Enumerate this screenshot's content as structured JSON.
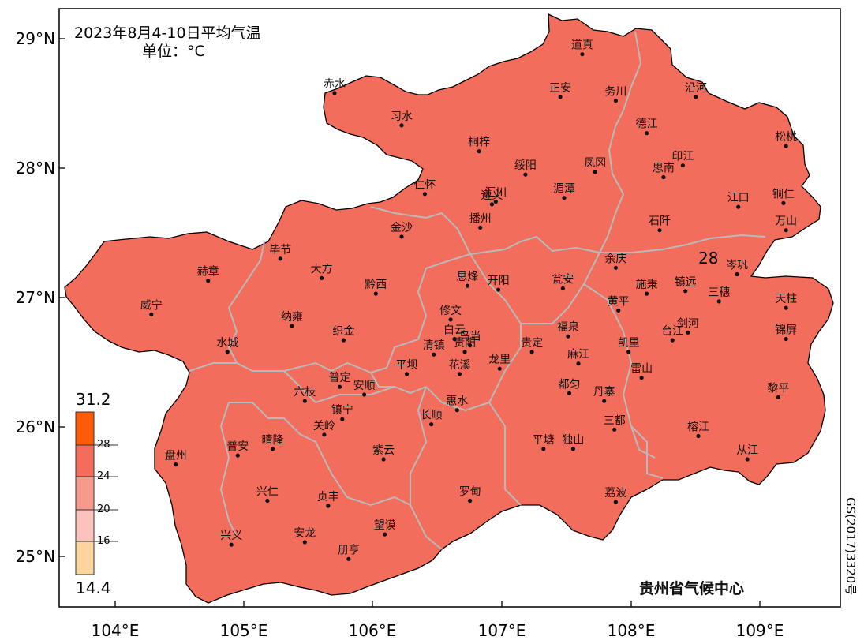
{
  "title": "2023年8月4-10日平均气温",
  "unit": "单位：°C",
  "credit": "贵州省气候中心",
  "map_number": "GS(2017)3320号",
  "contour_label": "28",
  "lat_labels": [
    "29°N",
    "28°N",
    "27°N",
    "26°N",
    "25°N"
  ],
  "lon_labels": [
    "104°E",
    "105°E",
    "106°E",
    "107°E",
    "108°E",
    "109°E"
  ],
  "legend": {
    "max": "31.2",
    "min": "14.4",
    "ticks": [
      "28",
      "24",
      "20",
      "16"
    ],
    "colors": [
      "#ff5a0a",
      "#f36d5c",
      "#f59a8c",
      "#fbc3bb",
      "#fdd49b"
    ]
  },
  "cities": [
    {
      "name": "道真",
      "lon": 107.62,
      "lat": 28.88
    },
    {
      "name": "赤水",
      "lon": 105.7,
      "lat": 28.58
    },
    {
      "name": "正安",
      "lon": 107.45,
      "lat": 28.55
    },
    {
      "name": "务川",
      "lon": 107.88,
      "lat": 28.52
    },
    {
      "name": "沿河",
      "lon": 108.5,
      "lat": 28.55
    },
    {
      "name": "习水",
      "lon": 106.22,
      "lat": 28.33
    },
    {
      "name": "德江",
      "lon": 108.12,
      "lat": 28.27
    },
    {
      "name": "桐梓",
      "lon": 106.82,
      "lat": 28.13
    },
    {
      "name": "松桃",
      "lon": 109.2,
      "lat": 28.17
    },
    {
      "name": "印江",
      "lon": 108.4,
      "lat": 28.02
    },
    {
      "name": "凤冈",
      "lon": 107.72,
      "lat": 27.97
    },
    {
      "name": "思南",
      "lon": 108.25,
      "lat": 27.93
    },
    {
      "name": "绥阳",
      "lon": 107.18,
      "lat": 27.95
    },
    {
      "name": "仁怀",
      "lon": 106.4,
      "lat": 27.8
    },
    {
      "name": "遵义",
      "lon": 106.92,
      "lat": 27.72
    },
    {
      "name": "汇川",
      "lon": 106.95,
      "lat": 27.74
    },
    {
      "name": "湄潭",
      "lon": 107.48,
      "lat": 27.77
    },
    {
      "name": "江口",
      "lon": 108.83,
      "lat": 27.7
    },
    {
      "name": "铜仁",
      "lon": 109.18,
      "lat": 27.73
    },
    {
      "name": "石阡",
      "lon": 108.22,
      "lat": 27.52
    },
    {
      "name": "播州",
      "lon": 106.83,
      "lat": 27.54
    },
    {
      "name": "万山",
      "lon": 109.2,
      "lat": 27.52
    },
    {
      "name": "金沙",
      "lon": 106.22,
      "lat": 27.47
    },
    {
      "name": "毕节",
      "lon": 105.28,
      "lat": 27.3
    },
    {
      "name": "余庆",
      "lon": 107.88,
      "lat": 27.23
    },
    {
      "name": "岑巩",
      "lon": 108.82,
      "lat": 27.18
    },
    {
      "name": "大方",
      "lon": 105.6,
      "lat": 27.15
    },
    {
      "name": "赫章",
      "lon": 104.72,
      "lat": 27.13
    },
    {
      "name": "息烽",
      "lon": 106.73,
      "lat": 27.09
    },
    {
      "name": "开阳",
      "lon": 106.97,
      "lat": 27.06
    },
    {
      "name": "瓮安",
      "lon": 107.47,
      "lat": 27.07
    },
    {
      "name": "施秉",
      "lon": 108.12,
      "lat": 27.03
    },
    {
      "name": "镇远",
      "lon": 108.42,
      "lat": 27.05
    },
    {
      "name": "黔西",
      "lon": 106.02,
      "lat": 27.03
    },
    {
      "name": "三穗",
      "lon": 108.68,
      "lat": 26.97
    },
    {
      "name": "天柱",
      "lon": 109.2,
      "lat": 26.92
    },
    {
      "name": "黄平",
      "lon": 107.9,
      "lat": 26.9
    },
    {
      "name": "威宁",
      "lon": 104.28,
      "lat": 26.87
    },
    {
      "name": "修文",
      "lon": 106.6,
      "lat": 26.83
    },
    {
      "name": "纳雍",
      "lon": 105.37,
      "lat": 26.78
    },
    {
      "name": "福泉",
      "lon": 107.51,
      "lat": 26.7
    },
    {
      "name": "剑河",
      "lon": 108.44,
      "lat": 26.73
    },
    {
      "name": "台江",
      "lon": 108.32,
      "lat": 26.67
    },
    {
      "name": "锦屏",
      "lon": 109.2,
      "lat": 26.68
    },
    {
      "name": "白云",
      "lon": 106.63,
      "lat": 26.68
    },
    {
      "name": "乌当",
      "lon": 106.75,
      "lat": 26.63
    },
    {
      "name": "织金",
      "lon": 105.77,
      "lat": 26.67
    },
    {
      "name": "贵阳",
      "lon": 106.71,
      "lat": 26.58
    },
    {
      "name": "清镇",
      "lon": 106.47,
      "lat": 26.56
    },
    {
      "name": "贵定",
      "lon": 107.23,
      "lat": 26.58
    },
    {
      "name": "凯里",
      "lon": 107.98,
      "lat": 26.58
    },
    {
      "name": "水城",
      "lon": 104.87,
      "lat": 26.58
    },
    {
      "name": "麻江",
      "lon": 107.59,
      "lat": 26.49
    },
    {
      "name": "龙里",
      "lon": 106.98,
      "lat": 26.45
    },
    {
      "name": "花溪",
      "lon": 106.67,
      "lat": 26.41
    },
    {
      "name": "平坝",
      "lon": 106.26,
      "lat": 26.41
    },
    {
      "name": "雷山",
      "lon": 108.08,
      "lat": 26.38
    },
    {
      "name": "都匀",
      "lon": 107.52,
      "lat": 26.26
    },
    {
      "name": "普定",
      "lon": 105.74,
      "lat": 26.31
    },
    {
      "name": "安顺",
      "lon": 105.93,
      "lat": 26.25
    },
    {
      "name": "黎平",
      "lon": 109.14,
      "lat": 26.23
    },
    {
      "name": "丹寨",
      "lon": 107.79,
      "lat": 26.2
    },
    {
      "name": "六枝",
      "lon": 105.47,
      "lat": 26.2
    },
    {
      "name": "惠水",
      "lon": 106.65,
      "lat": 26.13
    },
    {
      "name": "镇宁",
      "lon": 105.76,
      "lat": 26.06
    },
    {
      "name": "长顺",
      "lon": 106.45,
      "lat": 26.02
    },
    {
      "name": "关岭",
      "lon": 105.62,
      "lat": 25.94
    },
    {
      "name": "三都",
      "lon": 107.87,
      "lat": 25.98
    },
    {
      "name": "榕江",
      "lon": 108.52,
      "lat": 25.93
    },
    {
      "name": "平塘",
      "lon": 107.32,
      "lat": 25.83
    },
    {
      "name": "独山",
      "lon": 107.55,
      "lat": 25.83
    },
    {
      "name": "晴隆",
      "lon": 105.22,
      "lat": 25.83
    },
    {
      "name": "普安",
      "lon": 104.95,
      "lat": 25.78
    },
    {
      "name": "紫云",
      "lon": 106.08,
      "lat": 25.75
    },
    {
      "name": "从江",
      "lon": 108.9,
      "lat": 25.75
    },
    {
      "name": "盘州",
      "lon": 104.47,
      "lat": 25.71
    },
    {
      "name": "兴仁",
      "lon": 105.18,
      "lat": 25.43
    },
    {
      "name": "贞丰",
      "lon": 105.65,
      "lat": 25.39
    },
    {
      "name": "罗甸",
      "lon": 106.75,
      "lat": 25.43
    },
    {
      "name": "荔波",
      "lon": 107.88,
      "lat": 25.42
    },
    {
      "name": "望谟",
      "lon": 106.09,
      "lat": 25.17
    },
    {
      "name": "安龙",
      "lon": 105.47,
      "lat": 25.11
    },
    {
      "name": "兴义",
      "lon": 104.9,
      "lat": 25.09
    },
    {
      "name": "册亨",
      "lon": 105.81,
      "lat": 24.98
    }
  ]
}
